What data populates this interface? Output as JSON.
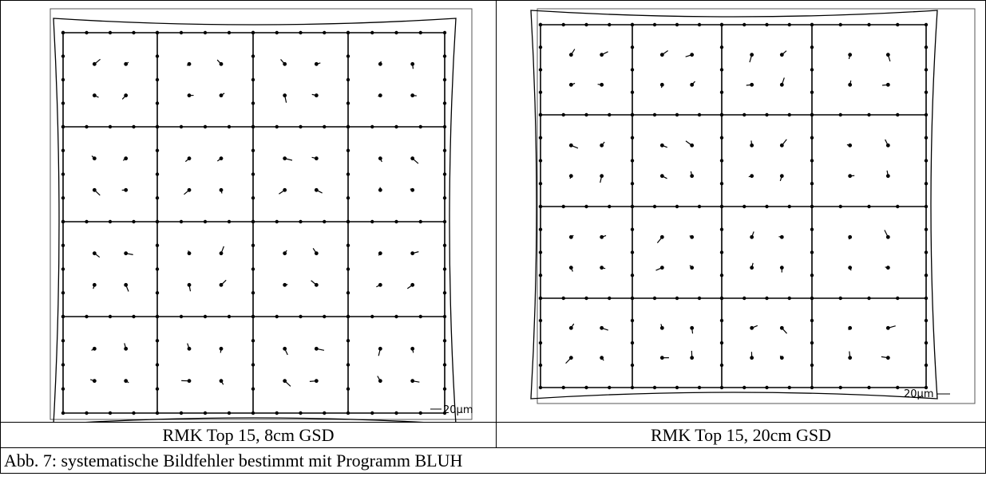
{
  "figures": [
    {
      "scale_label": "20µm",
      "caption": "RMK Top 15,  8cm GSD"
    },
    {
      "scale_label": "20µm",
      "caption": "RMK Top 15,  20cm GSD"
    }
  ],
  "footer": "Abb. 7: systematische Bildfehler bestimmt mit Programm BLUH"
}
